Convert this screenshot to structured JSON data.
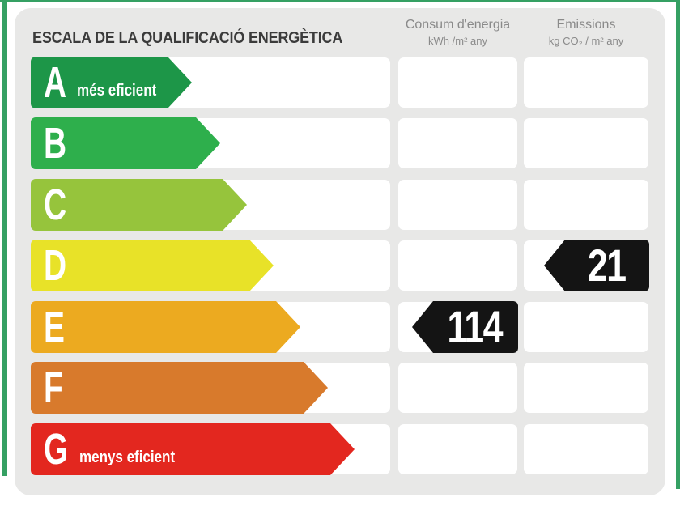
{
  "frame": {
    "border_color": "#35a063"
  },
  "card": {
    "background": "#e8e8e7"
  },
  "header": {
    "title": "ESCALA DE LA QUALIFICACIÓ ENERGÈTICA",
    "columns": [
      {
        "name": "consum",
        "line1": "Consum d'energia",
        "line2": "kWh /m²  any"
      },
      {
        "name": "emissions",
        "line1": "Emissions",
        "line2": "kg CO₂ / m²  any"
      }
    ]
  },
  "scale": {
    "rows": [
      {
        "grade": "A",
        "label": "més eficient",
        "color": "#1d9648"
      },
      {
        "grade": "B",
        "label": "",
        "color": "#2eaf4c"
      },
      {
        "grade": "C",
        "label": "",
        "color": "#96c43c"
      },
      {
        "grade": "D",
        "label": "",
        "color": "#e8e228"
      },
      {
        "grade": "E",
        "label": "",
        "color": "#ecaa20"
      },
      {
        "grade": "F",
        "label": "",
        "color": "#d87a2c"
      },
      {
        "grade": "G",
        "label": "menys eficient",
        "color": "#e3271f"
      }
    ]
  },
  "values": {
    "consum": {
      "grade": "E",
      "value": "114",
      "arrow_color": "#141414"
    },
    "emissions": {
      "grade": "D",
      "value": "21",
      "arrow_color": "#141414"
    }
  },
  "chart_data": {
    "type": "bar",
    "title": "ESCALA DE LA QUALIFICACIÓ ENERGÈTICA",
    "categories": [
      "A",
      "B",
      "C",
      "D",
      "E",
      "F",
      "G"
    ],
    "bar_colors": [
      "#1d9648",
      "#2eaf4c",
      "#96c43c",
      "#e8e228",
      "#ecaa20",
      "#d87a2c",
      "#e3271f"
    ],
    "bar_relative_lengths": [
      199,
      234,
      267,
      300,
      333,
      367,
      400
    ],
    "column_labels": [
      "Consum d'energia (kWh/m² any)",
      "Emissions (kg CO₂/m² any)"
    ],
    "annotations": [
      {
        "column": "Consum d'energia (kWh/m² any)",
        "grade": "E",
        "value": 114
      },
      {
        "column": "Emissions (kg CO₂/m² any)",
        "grade": "D",
        "value": 21
      }
    ],
    "notes": {
      "best": "A més eficient",
      "worst": "G menys eficient"
    },
    "legend_position": "none",
    "grid": false
  }
}
